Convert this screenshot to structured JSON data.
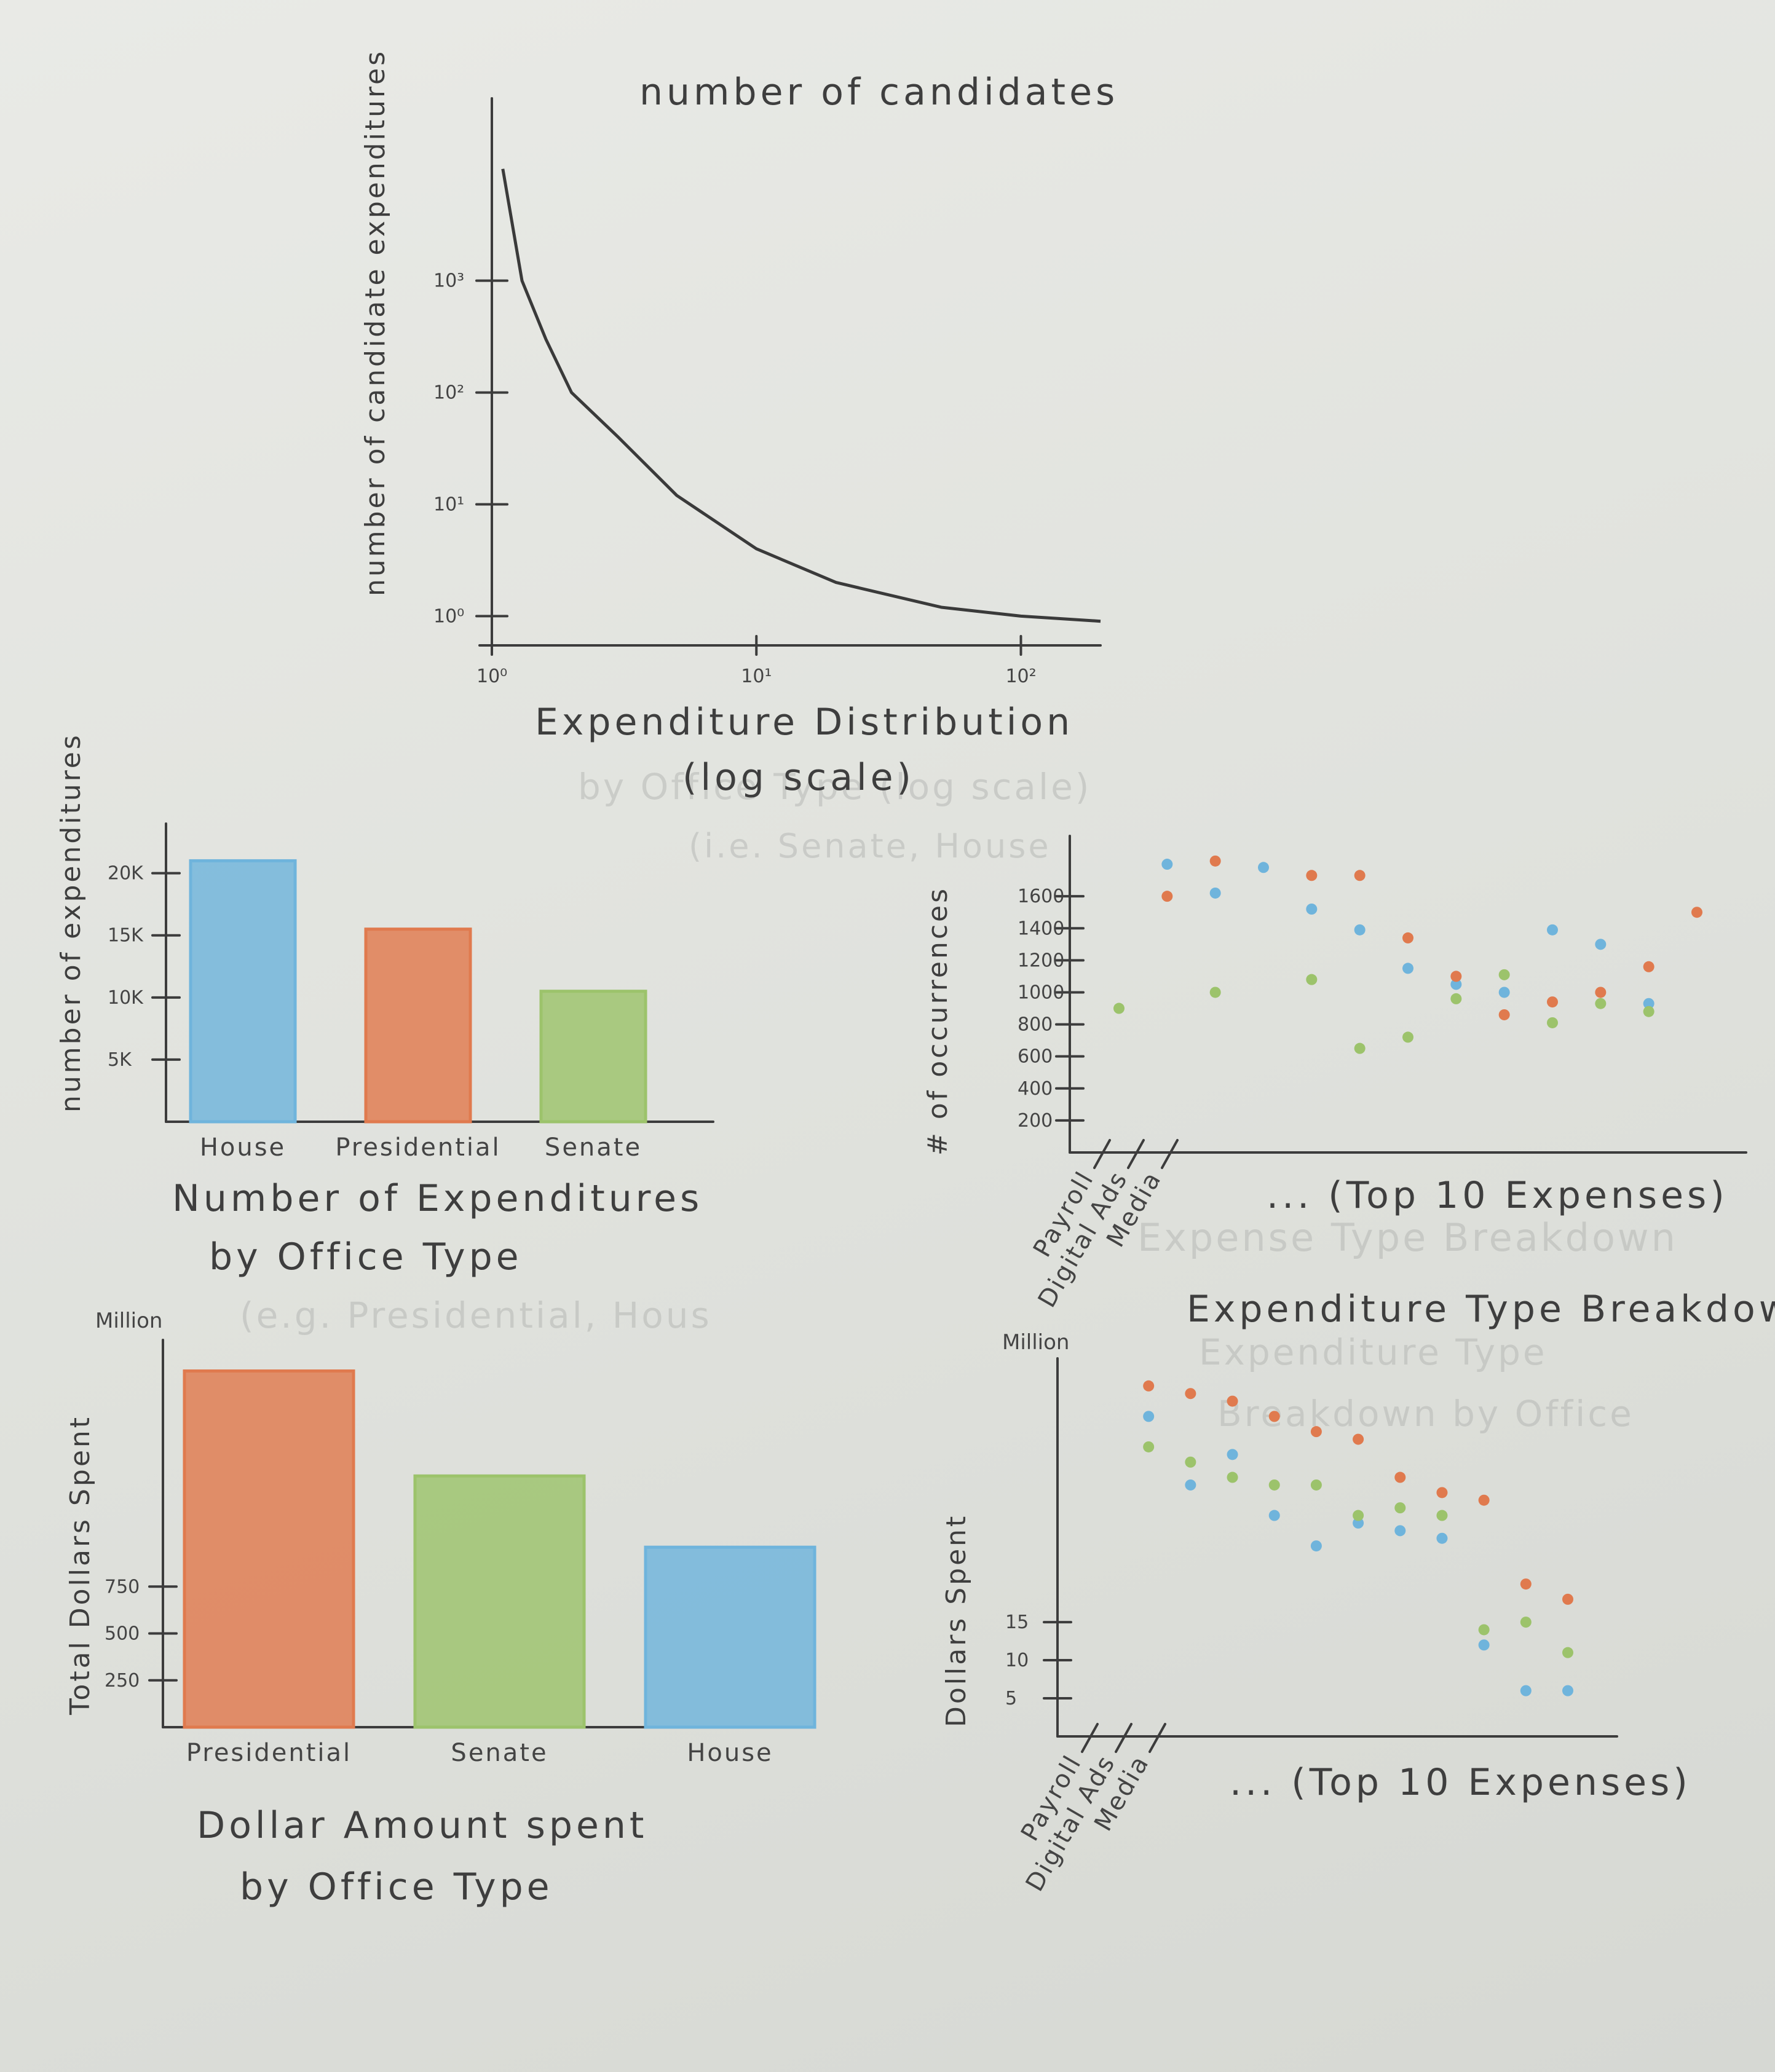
{
  "colors": {
    "blue": "#6fb4dc",
    "orange": "#e07a4e",
    "green": "#9cc36b",
    "ink": "#3c3c3c"
  },
  "chart_data": [
    {
      "id": "candidates",
      "type": "line",
      "title": "number of candidates",
      "xlabel": "Expenditure Distribution",
      "xlabel2": "(log scale)",
      "ylabel": "number of candidate expenditures",
      "x_scale": "log",
      "y_scale": "log",
      "xticks": [
        "10⁰",
        "10¹",
        "10²"
      ],
      "yticks": [
        "10⁰",
        "10¹",
        "10²",
        "10³"
      ],
      "xlim": [
        1,
        200
      ],
      "ylim": [
        0.8,
        20000
      ],
      "x": [
        1.1,
        1.3,
        1.6,
        2,
        3,
        5,
        10,
        20,
        50,
        100,
        200
      ],
      "y": [
        10000,
        1000,
        300,
        100,
        40,
        12,
        4,
        2,
        1.2,
        1,
        0.9
      ]
    },
    {
      "id": "count_by_office",
      "type": "bar",
      "title_line1": "Number of Expenditures",
      "title_line2": "by Office Type",
      "ylabel": "number of expenditures",
      "categories": [
        "House",
        "Presidential",
        "Senate"
      ],
      "values": [
        21000,
        15500,
        10500
      ],
      "bar_colors": [
        "blue",
        "orange",
        "green"
      ],
      "yticks": [
        {
          "v": 5000,
          "t": "5K"
        },
        {
          "v": 10000,
          "t": "10K"
        },
        {
          "v": 15000,
          "t": "15K"
        },
        {
          "v": 20000,
          "t": "20K"
        }
      ],
      "ylim": [
        0,
        23000
      ]
    },
    {
      "id": "dollars_by_office",
      "type": "bar",
      "title_line1": "Dollar Amount spent",
      "title_line2": "by Office Type",
      "ylabel": "Total Dollars Spent",
      "unit": "Million",
      "categories": [
        "Presidential",
        "Senate",
        "House"
      ],
      "values": [
        1900,
        1340,
        960
      ],
      "bar_colors": [
        "orange",
        "green",
        "blue"
      ],
      "yticks": [
        {
          "v": 250,
          "t": "250"
        },
        {
          "v": 500,
          "t": "500"
        },
        {
          "v": 750,
          "t": "750"
        }
      ],
      "ylim": [
        0,
        2000
      ]
    },
    {
      "id": "occurrences_by_type",
      "type": "scatter",
      "ylabel": "# of occurrences",
      "xnote": "... (Top 10 Expenses)",
      "categories": [
        "Payroll",
        "Digital Ads",
        "Media"
      ],
      "yticks": [
        200,
        400,
        600,
        800,
        1000,
        1200,
        1400,
        1600
      ],
      "ylim": [
        0,
        1900
      ],
      "series": [
        {
          "color": "blue",
          "points": [
            [
              1,
              1800
            ],
            [
              2,
              1620
            ],
            [
              3,
              1780
            ],
            [
              4,
              1520
            ],
            [
              5,
              1390
            ],
            [
              6,
              1150
            ],
            [
              7,
              1050
            ],
            [
              8,
              1000
            ],
            [
              9,
              1390
            ],
            [
              10,
              1300
            ],
            [
              11,
              930
            ]
          ]
        },
        {
          "color": "orange",
          "points": [
            [
              1,
              1600
            ],
            [
              2,
              1820
            ],
            [
              4,
              1730
            ],
            [
              5,
              1730
            ],
            [
              6,
              1340
            ],
            [
              7,
              1100
            ],
            [
              8,
              860
            ],
            [
              9,
              940
            ],
            [
              10,
              1000
            ],
            [
              11,
              1160
            ],
            [
              12,
              1500
            ]
          ]
        },
        {
          "color": "green",
          "points": [
            [
              0,
              900
            ],
            [
              2,
              1000
            ],
            [
              4,
              1080
            ],
            [
              5,
              650
            ],
            [
              6,
              720
            ],
            [
              7,
              960
            ],
            [
              8,
              1110
            ],
            [
              9,
              810
            ],
            [
              10,
              930
            ],
            [
              11,
              880
            ]
          ]
        }
      ]
    },
    {
      "id": "dollars_by_type",
      "type": "scatter",
      "title": "Expenditure Type Breakdown",
      "ylabel": "Dollars Spent",
      "unit": "Million",
      "xnote": "... (Top 10 Expenses)",
      "categories": [
        "Payroll",
        "Digital Ads",
        "Media"
      ],
      "yticks": [
        {
          "v": 5,
          "t": "5"
        },
        {
          "v": 10,
          "t": "10"
        },
        {
          "v": 15,
          "t": "15"
        }
      ],
      "ylim": [
        0,
        48
      ],
      "series": [
        {
          "color": "orange",
          "points": [
            [
              1,
              46
            ],
            [
              2,
              45
            ],
            [
              3,
              44
            ],
            [
              4,
              42
            ],
            [
              5,
              40
            ],
            [
              6,
              39
            ],
            [
              7,
              34
            ],
            [
              8,
              32
            ],
            [
              9,
              31
            ],
            [
              10,
              20
            ],
            [
              11,
              18
            ]
          ]
        },
        {
          "color": "blue",
          "points": [
            [
              1,
              42
            ],
            [
              2,
              33
            ],
            [
              3,
              37
            ],
            [
              4,
              29
            ],
            [
              5,
              25
            ],
            [
              6,
              28
            ],
            [
              7,
              27
            ],
            [
              8,
              26
            ],
            [
              9,
              12
            ],
            [
              10,
              6
            ],
            [
              11,
              6
            ]
          ]
        },
        {
          "color": "green",
          "points": [
            [
              1,
              38
            ],
            [
              2,
              36
            ],
            [
              3,
              34
            ],
            [
              4,
              33
            ],
            [
              5,
              33
            ],
            [
              6,
              29
            ],
            [
              7,
              30
            ],
            [
              8,
              29
            ],
            [
              9,
              14
            ],
            [
              10,
              15
            ],
            [
              11,
              11
            ]
          ]
        }
      ]
    }
  ],
  "faint_text": {
    "line_a": "by Office Type (log scale)",
    "line_b": "(i.e. Senate, House",
    "line_c": "(e.g. Presidential, Hous",
    "line_d": "Expense Type Breakdown",
    "line_e": "Expenditure Type",
    "line_f": "Breakdown by Office"
  }
}
